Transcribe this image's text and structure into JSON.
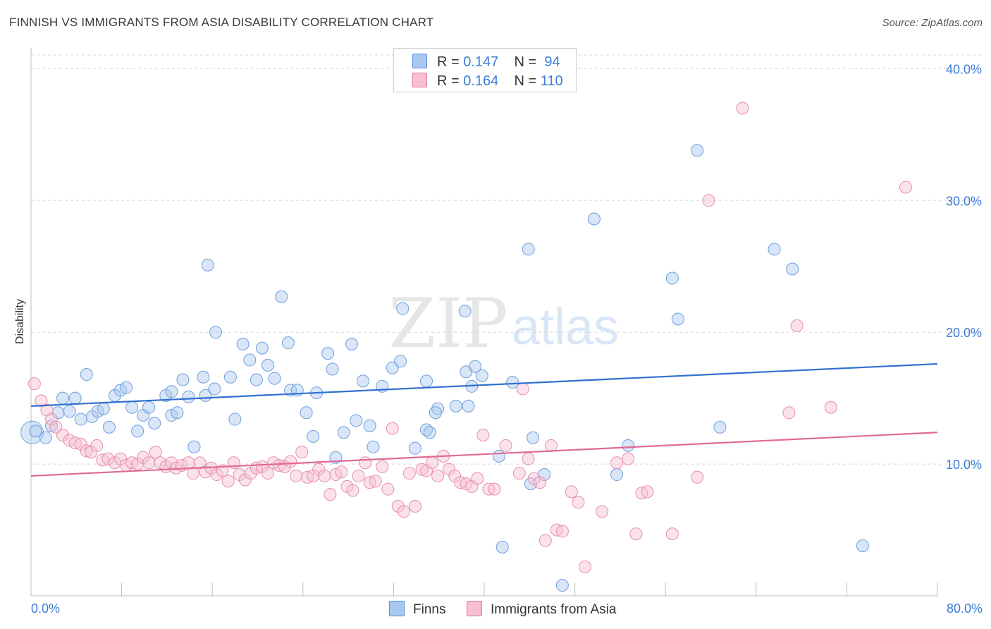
{
  "title": "FINNISH VS IMMIGRANTS FROM ASIA DISABILITY CORRELATION CHART",
  "source": "Source: ZipAtlas.com",
  "legend_top": [
    {
      "r_label": "R =",
      "r_value": "0.147",
      "n_label": "N =",
      "n_value": "94",
      "color": "#a9c8f0",
      "border": "#5b8fd6"
    },
    {
      "r_label": "R =",
      "r_value": "0.164",
      "n_label": "N =",
      "n_value": "110",
      "color": "#f7bfd0",
      "border": "#e07a9c"
    }
  ],
  "legend_bottom": [
    "Finns",
    "Immigrants from Asia"
  ],
  "watermark": {
    "zip": "ZIP",
    "atlas": "atlas"
  },
  "colors": {
    "blue": "#3070d0",
    "pink": "#e06a95",
    "blue_fill": "#a9c8f0",
    "pink_fill": "#f7bfd0",
    "axis_text": "#3a7dd8"
  },
  "chart_data": {
    "type": "scatter",
    "title": "FINNISH VS IMMIGRANTS FROM ASIA DISABILITY CORRELATION CHART",
    "xlabel": "",
    "ylabel": "Disability",
    "xlim": [
      0,
      80
    ],
    "ylim": [
      0,
      42
    ],
    "x_tick_labels": [
      "0.0%",
      "80.0%"
    ],
    "y_tick_labels": [
      "10.0%",
      "20.0%",
      "30.0%",
      "40.0%"
    ],
    "y_ticks": [
      10,
      20,
      30,
      40
    ],
    "grid": true,
    "legend_position": "top-center",
    "series": [
      {
        "name": "Finns",
        "color": "#3070d0",
        "trend": [
          [
            0,
            14.4
          ],
          [
            80,
            17.6
          ]
        ],
        "points": [
          [
            0.1,
            12.4
          ],
          [
            0.4,
            12.5
          ],
          [
            1.3,
            12.0
          ],
          [
            1.8,
            12.9
          ],
          [
            2.4,
            13.9
          ],
          [
            2.8,
            15.0
          ],
          [
            3.4,
            14.0
          ],
          [
            3.9,
            15.0
          ],
          [
            4.4,
            13.4
          ],
          [
            4.9,
            16.8
          ],
          [
            5.4,
            13.6
          ],
          [
            5.9,
            14.0
          ],
          [
            6.4,
            14.2
          ],
          [
            6.9,
            12.8
          ],
          [
            7.4,
            15.2
          ],
          [
            7.9,
            15.6
          ],
          [
            8.4,
            15.8
          ],
          [
            8.9,
            14.3
          ],
          [
            9.4,
            12.5
          ],
          [
            9.9,
            13.7
          ],
          [
            10.4,
            14.3
          ],
          [
            10.9,
            13.1
          ],
          [
            11.9,
            15.2
          ],
          [
            12.4,
            15.5
          ],
          [
            12.4,
            13.7
          ],
          [
            12.9,
            13.9
          ],
          [
            13.4,
            16.4
          ],
          [
            13.9,
            15.1
          ],
          [
            14.4,
            11.3
          ],
          [
            15.2,
            16.6
          ],
          [
            15.4,
            15.2
          ],
          [
            15.6,
            25.1
          ],
          [
            16.2,
            15.7
          ],
          [
            16.3,
            20.0
          ],
          [
            17.6,
            16.6
          ],
          [
            18.0,
            13.4
          ],
          [
            18.7,
            19.1
          ],
          [
            19.3,
            17.9
          ],
          [
            19.9,
            16.4
          ],
          [
            20.4,
            18.8
          ],
          [
            20.9,
            17.5
          ],
          [
            21.5,
            16.5
          ],
          [
            22.1,
            22.7
          ],
          [
            22.7,
            19.2
          ],
          [
            22.9,
            15.6
          ],
          [
            23.5,
            15.6
          ],
          [
            24.3,
            13.9
          ],
          [
            24.9,
            12.1
          ],
          [
            25.2,
            15.4
          ],
          [
            26.2,
            18.4
          ],
          [
            26.6,
            17.2
          ],
          [
            26.9,
            10.5
          ],
          [
            27.6,
            12.4
          ],
          [
            28.3,
            19.1
          ],
          [
            28.7,
            13.3
          ],
          [
            29.3,
            16.3
          ],
          [
            29.9,
            12.9
          ],
          [
            30.2,
            11.3
          ],
          [
            31.0,
            15.9
          ],
          [
            31.9,
            17.3
          ],
          [
            32.6,
            17.8
          ],
          [
            32.8,
            21.8
          ],
          [
            33.9,
            11.2
          ],
          [
            34.9,
            16.3
          ],
          [
            34.9,
            12.6
          ],
          [
            35.2,
            12.4
          ],
          [
            35.9,
            14.2
          ],
          [
            35.7,
            13.9
          ],
          [
            37.5,
            14.4
          ],
          [
            38.3,
            21.6
          ],
          [
            38.4,
            17.0
          ],
          [
            38.6,
            14.4
          ],
          [
            38.9,
            15.9
          ],
          [
            39.2,
            17.4
          ],
          [
            39.8,
            16.7
          ],
          [
            41.3,
            10.6
          ],
          [
            41.6,
            3.7
          ],
          [
            42.5,
            16.2
          ],
          [
            43.9,
            26.3
          ],
          [
            44.1,
            8.5
          ],
          [
            44.3,
            12.0
          ],
          [
            45.3,
            9.2
          ],
          [
            46.9,
            0.8
          ],
          [
            49.7,
            28.6
          ],
          [
            51.7,
            9.2
          ],
          [
            52.7,
            11.4
          ],
          [
            56.6,
            24.1
          ],
          [
            57.1,
            21.0
          ],
          [
            58.8,
            33.8
          ],
          [
            60.8,
            12.8
          ],
          [
            65.6,
            26.3
          ],
          [
            67.2,
            24.8
          ],
          [
            73.4,
            3.8
          ]
        ]
      },
      {
        "name": "Immigrants from Asia",
        "color": "#e06a95",
        "trend": [
          [
            0,
            9.1
          ],
          [
            80,
            12.4
          ]
        ],
        "points": [
          [
            0.3,
            16.1
          ],
          [
            0.9,
            14.8
          ],
          [
            1.4,
            14.1
          ],
          [
            1.8,
            13.4
          ],
          [
            2.2,
            12.8
          ],
          [
            2.8,
            12.2
          ],
          [
            3.4,
            11.8
          ],
          [
            3.9,
            11.6
          ],
          [
            4.4,
            11.5
          ],
          [
            4.9,
            11.0
          ],
          [
            5.3,
            10.9
          ],
          [
            5.8,
            11.4
          ],
          [
            6.3,
            10.3
          ],
          [
            6.8,
            10.4
          ],
          [
            7.4,
            10.1
          ],
          [
            7.9,
            10.4
          ],
          [
            8.4,
            9.9
          ],
          [
            8.9,
            10.1
          ],
          [
            9.4,
            10.0
          ],
          [
            9.9,
            10.5
          ],
          [
            10.4,
            10.1
          ],
          [
            11.0,
            10.9
          ],
          [
            11.4,
            10.1
          ],
          [
            11.9,
            9.8
          ],
          [
            12.4,
            10.1
          ],
          [
            12.8,
            9.7
          ],
          [
            13.3,
            9.9
          ],
          [
            13.9,
            10.1
          ],
          [
            14.3,
            9.3
          ],
          [
            14.9,
            10.1
          ],
          [
            15.4,
            9.4
          ],
          [
            15.9,
            9.7
          ],
          [
            16.4,
            9.2
          ],
          [
            16.9,
            9.5
          ],
          [
            17.4,
            8.7
          ],
          [
            17.9,
            10.1
          ],
          [
            18.4,
            9.2
          ],
          [
            18.9,
            8.8
          ],
          [
            19.4,
            9.3
          ],
          [
            19.9,
            9.7
          ],
          [
            20.4,
            9.8
          ],
          [
            20.9,
            9.3
          ],
          [
            21.4,
            10.1
          ],
          [
            21.9,
            9.9
          ],
          [
            22.4,
            9.8
          ],
          [
            22.9,
            10.2
          ],
          [
            23.4,
            9.1
          ],
          [
            23.9,
            10.9
          ],
          [
            24.4,
            9.0
          ],
          [
            24.9,
            9.1
          ],
          [
            25.4,
            9.6
          ],
          [
            25.9,
            9.1
          ],
          [
            26.4,
            7.7
          ],
          [
            26.9,
            9.2
          ],
          [
            27.4,
            9.4
          ],
          [
            27.9,
            8.3
          ],
          [
            28.4,
            8.0
          ],
          [
            28.9,
            9.1
          ],
          [
            29.5,
            10.1
          ],
          [
            29.9,
            8.6
          ],
          [
            30.4,
            8.7
          ],
          [
            31.0,
            9.8
          ],
          [
            31.5,
            8.1
          ],
          [
            31.9,
            12.7
          ],
          [
            32.4,
            6.8
          ],
          [
            32.9,
            6.4
          ],
          [
            33.4,
            9.3
          ],
          [
            33.9,
            6.8
          ],
          [
            34.5,
            9.6
          ],
          [
            34.9,
            9.5
          ],
          [
            35.4,
            10.1
          ],
          [
            35.9,
            9.1
          ],
          [
            36.4,
            10.6
          ],
          [
            36.9,
            9.6
          ],
          [
            37.4,
            9.1
          ],
          [
            37.9,
            8.6
          ],
          [
            38.4,
            8.5
          ],
          [
            38.9,
            8.3
          ],
          [
            39.4,
            8.9
          ],
          [
            39.9,
            12.2
          ],
          [
            40.4,
            8.1
          ],
          [
            40.9,
            8.1
          ],
          [
            41.9,
            11.4
          ],
          [
            43.1,
            9.3
          ],
          [
            43.4,
            15.7
          ],
          [
            43.9,
            10.4
          ],
          [
            44.4,
            8.9
          ],
          [
            44.9,
            8.6
          ],
          [
            45.4,
            4.2
          ],
          [
            45.9,
            11.4
          ],
          [
            46.4,
            5.0
          ],
          [
            46.9,
            4.9
          ],
          [
            47.7,
            7.9
          ],
          [
            48.3,
            7.1
          ],
          [
            48.9,
            2.2
          ],
          [
            50.4,
            6.4
          ],
          [
            51.7,
            10.1
          ],
          [
            52.7,
            10.4
          ],
          [
            53.4,
            4.7
          ],
          [
            53.9,
            7.8
          ],
          [
            54.4,
            7.9
          ],
          [
            56.6,
            4.7
          ],
          [
            58.8,
            9.0
          ],
          [
            59.8,
            30.0
          ],
          [
            62.8,
            37.0
          ],
          [
            66.9,
            13.9
          ],
          [
            67.6,
            20.5
          ],
          [
            70.6,
            14.3
          ],
          [
            77.2,
            31.0
          ]
        ]
      }
    ]
  }
}
